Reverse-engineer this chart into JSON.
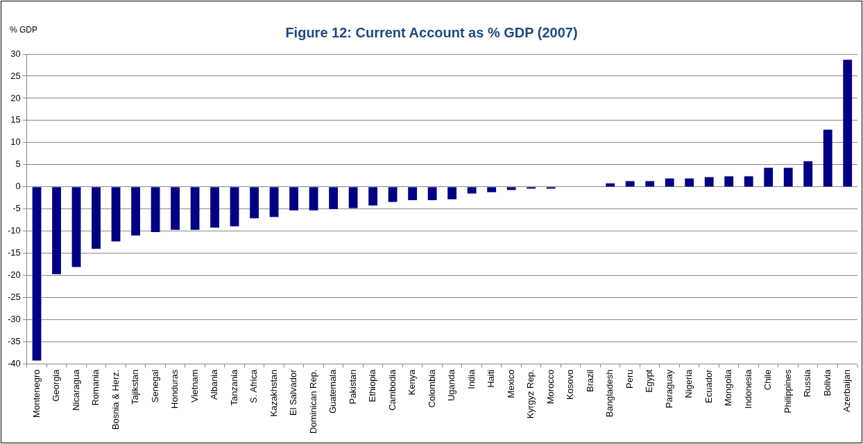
{
  "chart_data": {
    "type": "bar",
    "title": "Figure 12: Current Account as % GDP (2007)",
    "ylabel": "% GDP",
    "categories": [
      "Montenegro",
      "Georgia",
      "Nicaragua",
      "Romania",
      "Bosnia & Herz.",
      "Tajikstan",
      "Senegal",
      "Honduras",
      "Vietnam",
      "Albania",
      "Tanzania",
      "S. Africa",
      "Kazakhstan",
      "El Salvador",
      "Dominican Rep.",
      "Guatemala",
      "Pakistan",
      "Ethiopia",
      "Cambodia",
      "Kenya",
      "Colombia",
      "Uganda",
      "India",
      "Haiti",
      "Mexico",
      "Kyrgyz Rep.",
      "Morocco",
      "Kosovo",
      "Brazil",
      "Bangladesh",
      "Peru",
      "Egypt",
      "Paraguay",
      "Nigeria",
      "Ecuador",
      "Mongolia",
      "Indonesia",
      "Chile",
      "Philippines",
      "Russia",
      "Bolivia",
      "Azerbaijan"
    ],
    "values": [
      -39.2,
      -19.7,
      -18.1,
      -14.0,
      -12.3,
      -11.0,
      -10.2,
      -9.7,
      -9.7,
      -9.2,
      -8.9,
      -7.1,
      -6.8,
      -5.3,
      -5.3,
      -5.0,
      -4.8,
      -4.2,
      -3.4,
      -3.0,
      -3.0,
      -2.8,
      -1.5,
      -1.2,
      -0.7,
      -0.4,
      -0.4,
      0,
      0,
      0.8,
      1.3,
      1.3,
      1.9,
      1.9,
      2.2,
      2.4,
      2.4,
      4.3,
      4.3,
      5.8,
      12.9,
      28.7
    ],
    "color": "#000080",
    "ylim": [
      -40,
      30
    ],
    "yticks": [
      -40,
      -35,
      -30,
      -25,
      -20,
      -15,
      -10,
      -5,
      0,
      5,
      10,
      15,
      20,
      25,
      30
    ],
    "grid": "y",
    "legend": false
  }
}
